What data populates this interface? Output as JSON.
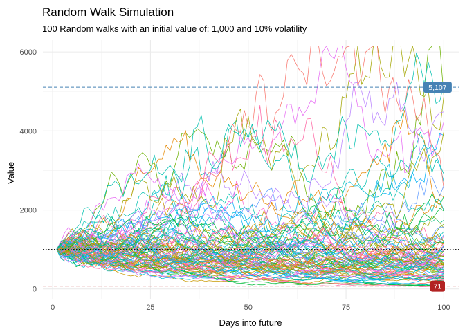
{
  "chart_data": {
    "type": "line",
    "title": "Random Walk Simulation",
    "subtitle": "100 Random walks with an initial value of: 1,000 and 10% volatility",
    "xlabel": "Days into future",
    "ylabel": "Value",
    "xlim": [
      -2.5,
      104
    ],
    "ylim": [
      -250,
      6300
    ],
    "x_ticks": [
      0,
      25,
      50,
      75,
      100
    ],
    "y_ticks": [
      0,
      2000,
      4000,
      6000
    ],
    "x_tick_labels": [
      "0",
      "25",
      "50",
      "75",
      "100"
    ],
    "y_tick_labels": [
      "0",
      "2000",
      "4000",
      "6000"
    ],
    "grid": true,
    "legend": "none",
    "days": 100,
    "series_count": 100,
    "initial_value": 1000,
    "volatility": 0.1,
    "reference_lines": [
      {
        "value": 5107,
        "label": "5,107",
        "color": "#4682B4",
        "style": "dashed"
      },
      {
        "value": 1000,
        "label": "",
        "color": "#000000",
        "style": "dotted"
      },
      {
        "value": 71,
        "label": "71",
        "color": "#B22222",
        "style": "dashed"
      }
    ],
    "series_colors": [
      "#F8766D",
      "#E58700",
      "#C99800",
      "#A3A500",
      "#6BB100",
      "#00BA38",
      "#00BF7D",
      "#00C0AF",
      "#00BCD8",
      "#00B0F6",
      "#619CFF",
      "#B983FF",
      "#E76BF3",
      "#FD61D1",
      "#FF67A4"
    ]
  }
}
